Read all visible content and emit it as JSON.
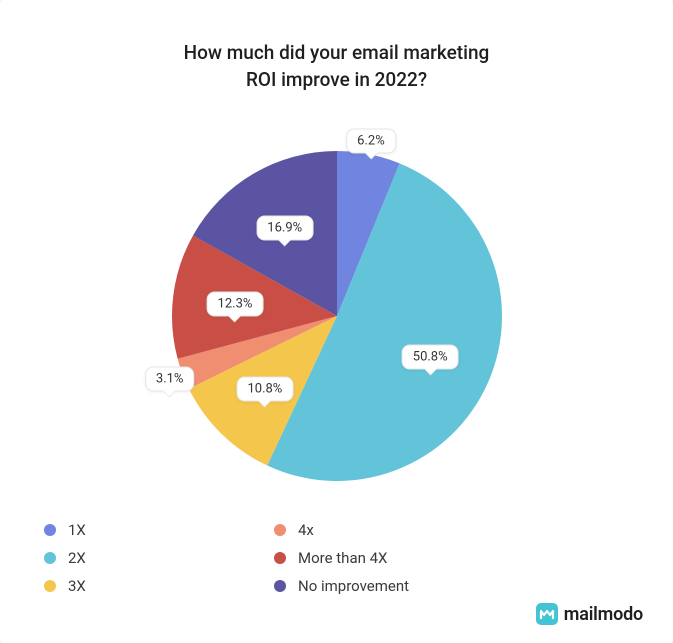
{
  "title": "How much did your email marketing\nROI improve in 2022?",
  "chart": {
    "type": "pie",
    "radius": 165,
    "background_color": "#ffffff",
    "start_angle_deg": -90,
    "slices": [
      {
        "label": "1X",
        "value": 6.2,
        "display": "6.2%",
        "color": "#6f85e0"
      },
      {
        "label": "2X",
        "value": 50.8,
        "display": "50.8%",
        "color": "#63c3d9"
      },
      {
        "label": "3X",
        "value": 10.8,
        "display": "10.8%",
        "color": "#f4c64b"
      },
      {
        "label": "4x",
        "value": 3.1,
        "display": "3.1%",
        "color": "#f08e71"
      },
      {
        "label": "More than 4X",
        "value": 12.3,
        "display": "12.3%",
        "color": "#c94f46"
      },
      {
        "label": "No improvement",
        "value": 16.9,
        "display": "16.9%",
        "color": "#5b54a2"
      }
    ],
    "label_style": {
      "bg": "#ffffff",
      "border": "#e6e6e6",
      "radius": 8,
      "fontsize": 13,
      "text_color": "#333333",
      "label_r_frac": {
        "default": 0.62,
        "small": 1.08
      }
    },
    "legend": {
      "columns": 2,
      "swatch_shape": "circle",
      "swatch_size": 12,
      "fontsize": 15,
      "text_color": "#3a3a3a"
    }
  },
  "brand": {
    "text": "mailmodo",
    "mark_bg": "#44c3d4",
    "mark_fg": "#ffffff"
  }
}
